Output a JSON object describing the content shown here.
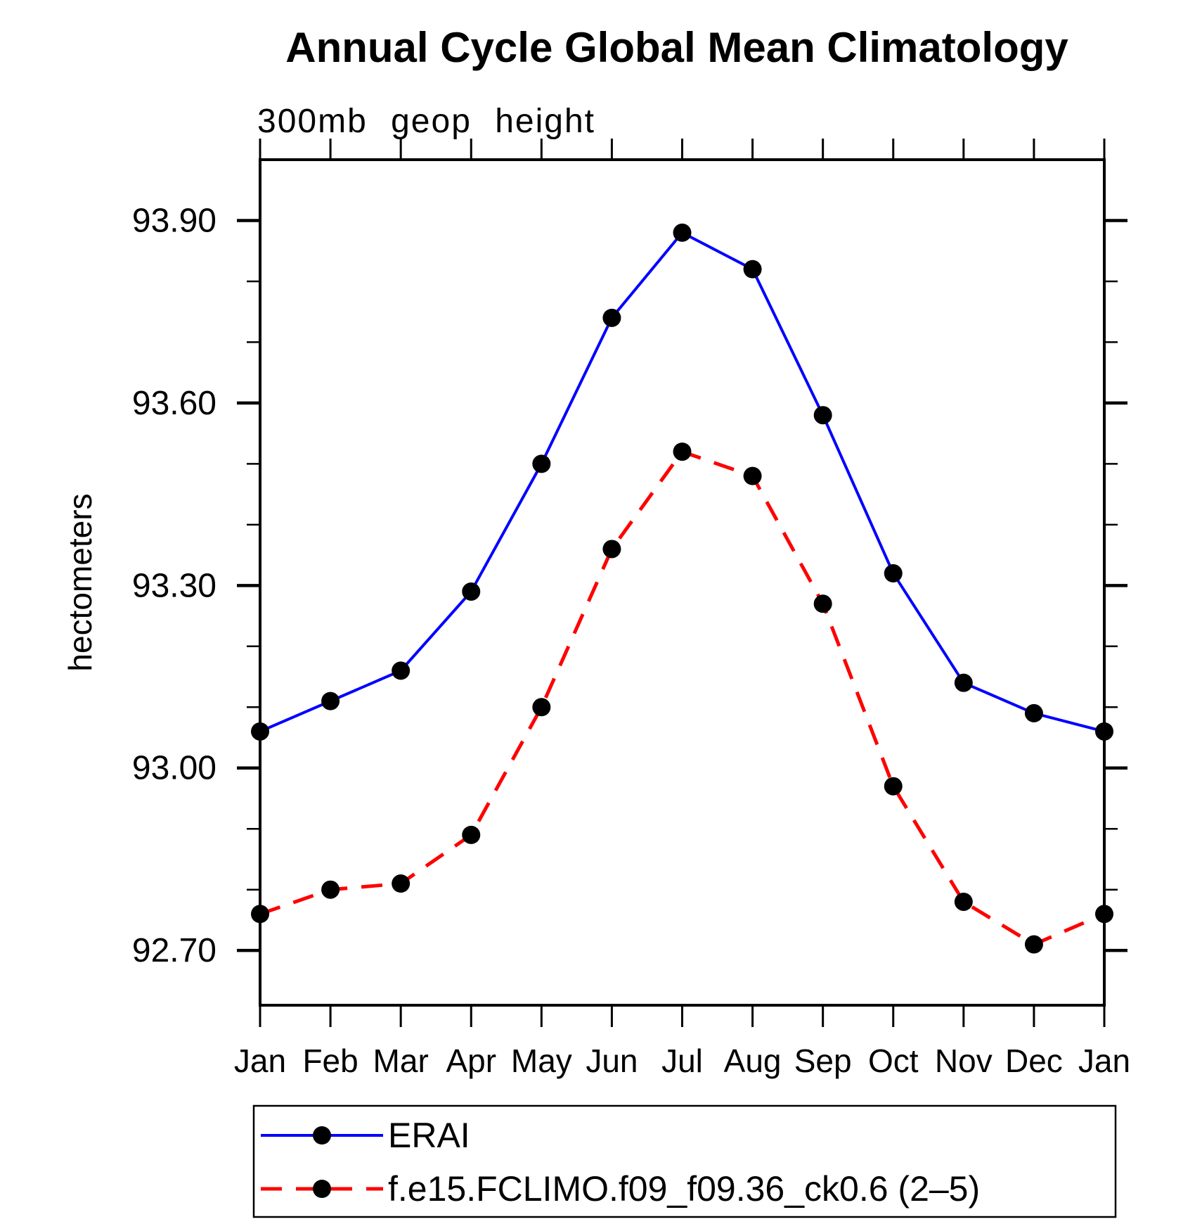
{
  "title": "Annual Cycle Global Mean Climatology",
  "subtitle": "300mb geop height",
  "ylabel": "hectometers",
  "colors": {
    "erai_line": "#0000ff",
    "model_line": "#ff0000",
    "marker": "#000000",
    "axis": "#000000",
    "background": "#ffffff"
  },
  "chart_data": {
    "type": "line",
    "title": "Annual Cycle Global Mean Climatology",
    "subtitle": "300mb geop height",
    "xlabel": "",
    "ylabel": "hectometers",
    "categories": [
      "Jan",
      "Feb",
      "Mar",
      "Apr",
      "May",
      "Jun",
      "Jul",
      "Aug",
      "Sep",
      "Oct",
      "Nov",
      "Dec",
      "Jan"
    ],
    "ylim": [
      92.61,
      94.0
    ],
    "y_major_ticks": [
      92.7,
      93.0,
      93.3,
      93.6,
      93.9
    ],
    "y_tick_labels": [
      "92.70",
      "93.00",
      "93.30",
      "93.60",
      "93.90"
    ],
    "y_minor_step": 0.1,
    "grid": false,
    "legend_position": "bottom-box",
    "series": [
      {
        "name": "ERAI",
        "color": "#0000ff",
        "line_style": "solid",
        "marker": "filled-circle",
        "values": [
          93.06,
          93.11,
          93.16,
          93.29,
          93.5,
          93.74,
          93.88,
          93.82,
          93.58,
          93.32,
          93.14,
          93.09,
          93.06
        ]
      },
      {
        "name": "f.e15.FCLIMO.f09_f09.36_ck0.6 (2–5)",
        "color": "#ff0000",
        "line_style": "dashed",
        "marker": "filled-circle",
        "values": [
          92.76,
          92.8,
          92.81,
          92.89,
          93.1,
          93.36,
          93.52,
          93.48,
          93.27,
          92.97,
          92.78,
          92.71,
          92.76
        ]
      }
    ]
  }
}
